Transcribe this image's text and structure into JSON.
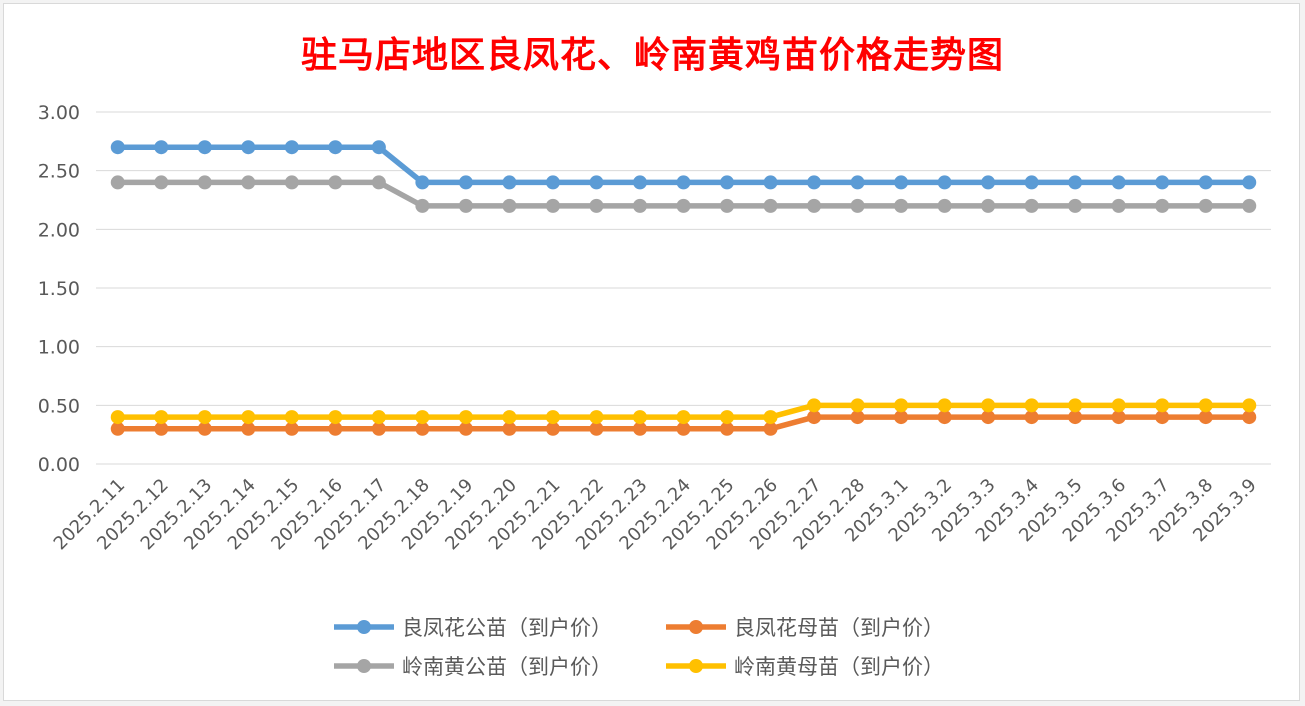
{
  "chart_data": {
    "type": "line",
    "title": "驻马店地区良凤花、岭南黄鸡苗价格走势图",
    "xlabel": "",
    "ylabel": "",
    "ylim": [
      0,
      3
    ],
    "yticks": [
      "0.00",
      "0.50",
      "1.00",
      "1.50",
      "2.00",
      "2.50",
      "3.00"
    ],
    "grid": true,
    "legend_position": "bottom",
    "categories": [
      "2025.2.11",
      "2025.2.12",
      "2025.2.13",
      "2025.2.14",
      "2025.2.15",
      "2025.2.16",
      "2025.2.17",
      "2025.2.18",
      "2025.2.19",
      "2025.2.20",
      "2025.2.21",
      "2025.2.22",
      "2025.2.23",
      "2025.2.24",
      "2025.2.25",
      "2025.2.26",
      "2025.2.27",
      "2025.2.28",
      "2025.3.1",
      "2025.3.2",
      "2025.3.3",
      "2025.3.4",
      "2025.3.5",
      "2025.3.6",
      "2025.3.7",
      "2025.3.8",
      "2025.3.9"
    ],
    "series": [
      {
        "name": "良凤花公苗（到户价）",
        "color": "#5b9bd5",
        "values": [
          2.7,
          2.7,
          2.7,
          2.7,
          2.7,
          2.7,
          2.7,
          2.4,
          2.4,
          2.4,
          2.4,
          2.4,
          2.4,
          2.4,
          2.4,
          2.4,
          2.4,
          2.4,
          2.4,
          2.4,
          2.4,
          2.4,
          2.4,
          2.4,
          2.4,
          2.4,
          2.4
        ]
      },
      {
        "name": "良凤花母苗（到户价）",
        "color": "#ed7d31",
        "values": [
          0.3,
          0.3,
          0.3,
          0.3,
          0.3,
          0.3,
          0.3,
          0.3,
          0.3,
          0.3,
          0.3,
          0.3,
          0.3,
          0.3,
          0.3,
          0.3,
          0.4,
          0.4,
          0.4,
          0.4,
          0.4,
          0.4,
          0.4,
          0.4,
          0.4,
          0.4,
          0.4
        ]
      },
      {
        "name": "岭南黄公苗（到户价）",
        "color": "#a5a5a5",
        "values": [
          2.4,
          2.4,
          2.4,
          2.4,
          2.4,
          2.4,
          2.4,
          2.2,
          2.2,
          2.2,
          2.2,
          2.2,
          2.2,
          2.2,
          2.2,
          2.2,
          2.2,
          2.2,
          2.2,
          2.2,
          2.2,
          2.2,
          2.2,
          2.2,
          2.2,
          2.2,
          2.2
        ]
      },
      {
        "name": "岭南黄母苗（到户价）",
        "color": "#ffc000",
        "values": [
          0.4,
          0.4,
          0.4,
          0.4,
          0.4,
          0.4,
          0.4,
          0.4,
          0.4,
          0.4,
          0.4,
          0.4,
          0.4,
          0.4,
          0.4,
          0.4,
          0.5,
          0.5,
          0.5,
          0.5,
          0.5,
          0.5,
          0.5,
          0.5,
          0.5,
          0.5,
          0.5
        ]
      }
    ]
  }
}
